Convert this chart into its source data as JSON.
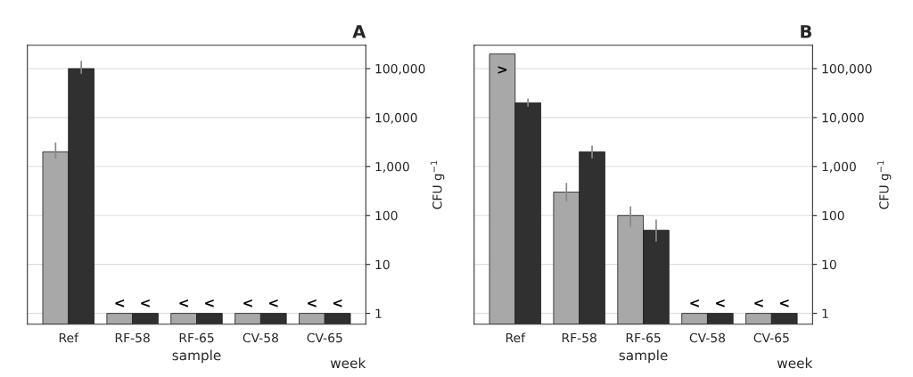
{
  "chart_data": [
    {
      "type": "bar",
      "title": "A",
      "xlabel": "sample",
      "ylabel": "CFU g$^{−1}$",
      "annotations": [
        "week"
      ],
      "categories": [
        "Ref",
        "RF-58",
        "RF-65",
        "CV-58",
        "CV-65"
      ],
      "log": "y",
      "ylim": [
        0.6,
        300000
      ],
      "yticks": [
        1,
        10,
        100,
        {
          "value": 1000,
          "label": "1,000"
        },
        {
          "value": 10000,
          "label": "10,000"
        },
        {
          "value": 100000,
          "label": "100,000"
        }
      ],
      "grid": "y",
      "series": [
        {
          "color": "#a8a8a8",
          "values": [
            2000,
            1,
            1,
            1,
            1
          ],
          "errors": [
            [
              1500,
              3000
            ],
            null,
            null,
            null,
            null
          ],
          "value_labels": [
            null,
            "<",
            "<",
            "<",
            "<"
          ]
        },
        {
          "color": "#303030",
          "values": [
            100000,
            1,
            1,
            1,
            1
          ],
          "errors": [
            [
              80000,
              140000
            ],
            null,
            null,
            null,
            null
          ],
          "value_labels": [
            null,
            "<",
            "<",
            "<",
            "<"
          ]
        }
      ]
    },
    {
      "type": "bar",
      "title": "B",
      "xlabel": "sample",
      "ylabel": "CFU g$^{−1}$",
      "annotations": [
        "week"
      ],
      "categories": [
        "Ref",
        "RF-58",
        "RF-65",
        "CV-58",
        "CV-65"
      ],
      "log": "y",
      "ylim": [
        0.6,
        300000
      ],
      "yticks": [
        1,
        10,
        100,
        {
          "value": 1000,
          "label": "1,000"
        },
        {
          "value": 10000,
          "label": "10,000"
        },
        {
          "value": 100000,
          "label": "100,000"
        }
      ],
      "grid": "y",
      "series": [
        {
          "color": "#a8a8a8",
          "values": [
            200000,
            300,
            100,
            1,
            1
          ],
          "errors": [
            null,
            [
              200,
              450
            ],
            [
              60,
              150
            ],
            null,
            null
          ],
          "value_labels": [
            ">",
            null,
            null,
            "<",
            "<"
          ]
        },
        {
          "color": "#303030",
          "values": [
            20000,
            2000,
            50,
            1,
            1
          ],
          "errors": [
            [
              17000,
              24000
            ],
            [
              1500,
              2600
            ],
            [
              30,
              80
            ],
            null,
            null
          ],
          "value_labels": [
            null,
            null,
            null,
            "<",
            "<"
          ]
        }
      ]
    }
  ]
}
